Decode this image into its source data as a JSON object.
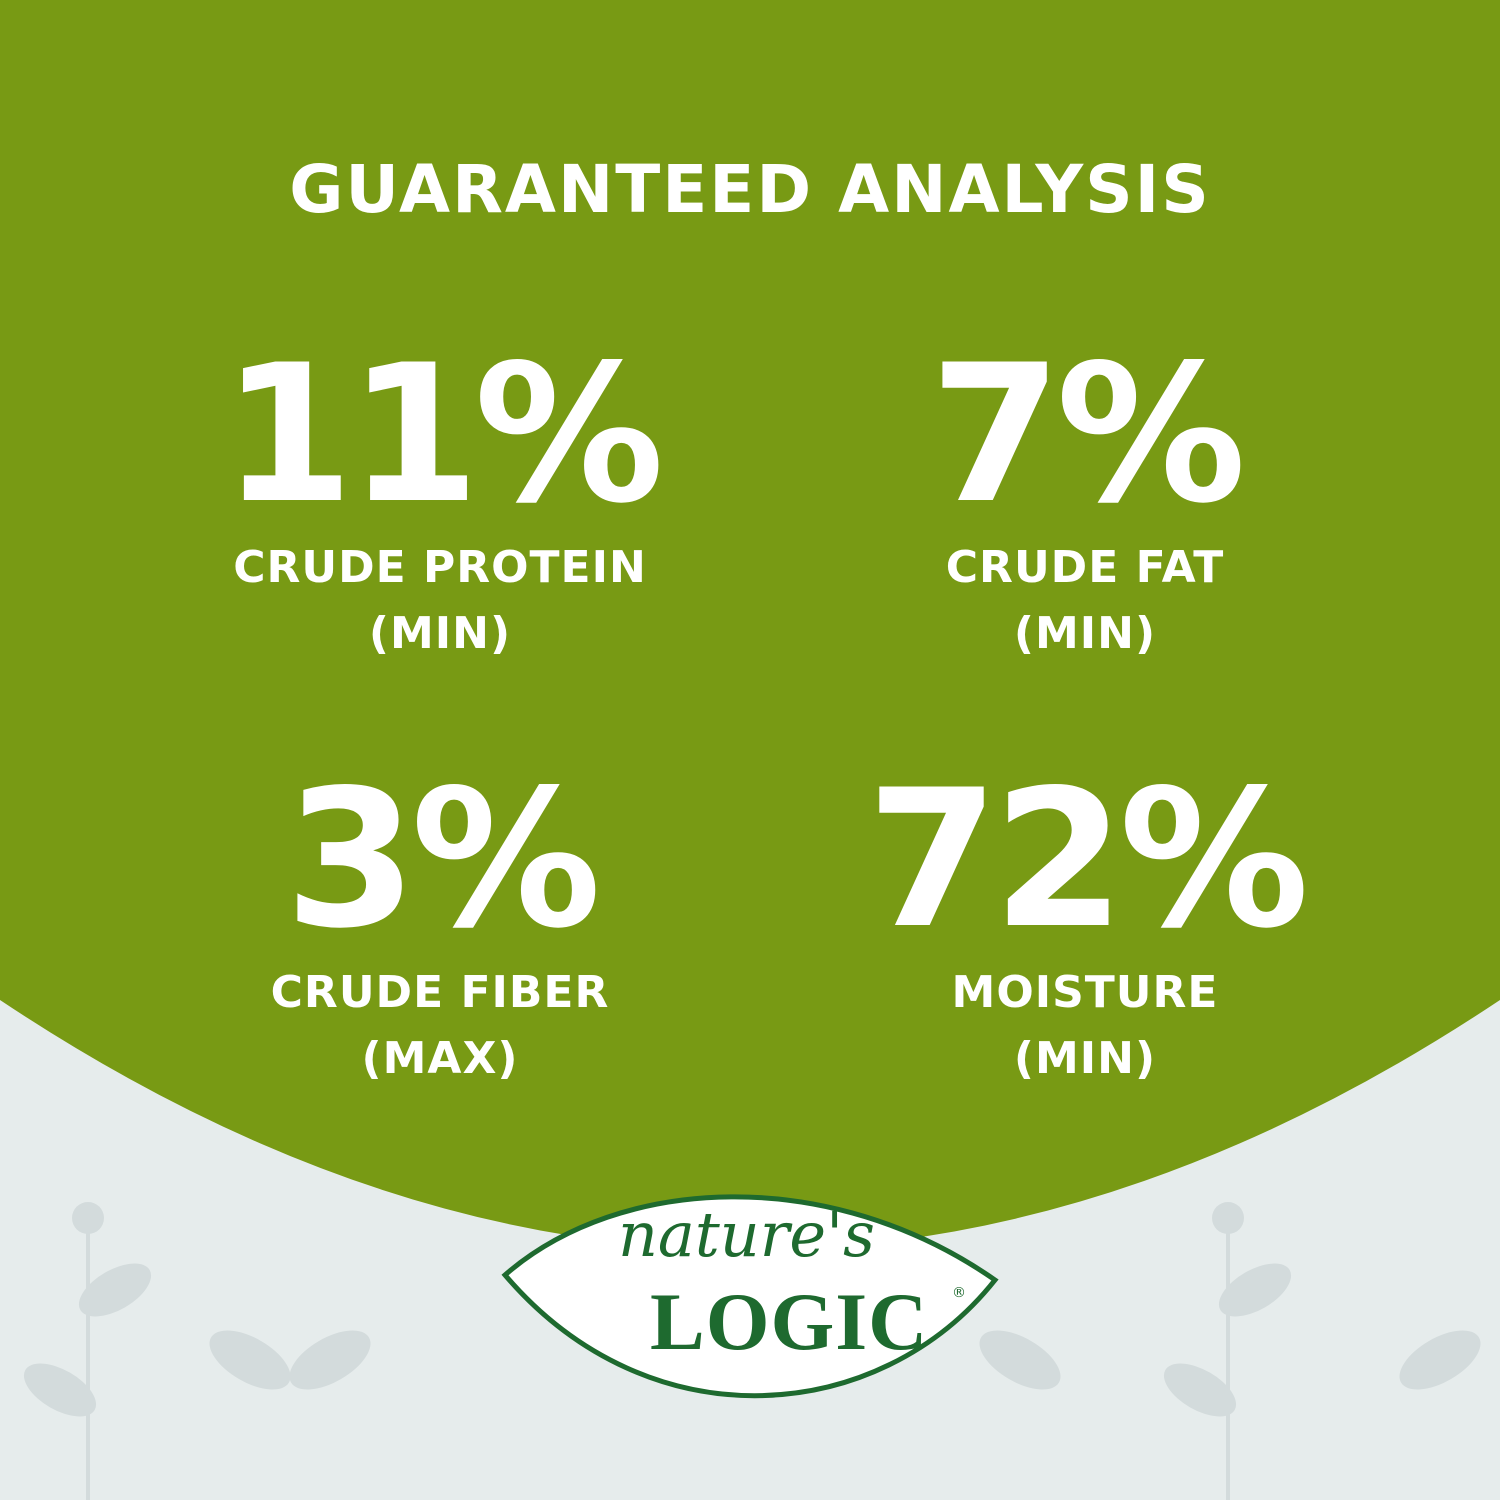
{
  "colors": {
    "brand_green": "#789a14",
    "background": "#e6ecec",
    "logo_green": "#1e6a2f",
    "pattern": "#d3dbdc"
  },
  "title": "GUARANTEED ANALYSIS",
  "stats": [
    {
      "value": "11%",
      "label": "CRUDE PROTEIN",
      "qualifier": "(MIN)"
    },
    {
      "value": "7%",
      "label": "CRUDE FAT",
      "qualifier": "(MIN)"
    },
    {
      "value": "3%",
      "label": "CRUDE FIBER",
      "qualifier": "(MAX)"
    },
    {
      "value": "72%",
      "label": "MOISTURE",
      "qualifier": "(MIN)"
    }
  ],
  "logo": {
    "script": "nature's",
    "word": "LOGIC",
    "mark": "®"
  }
}
